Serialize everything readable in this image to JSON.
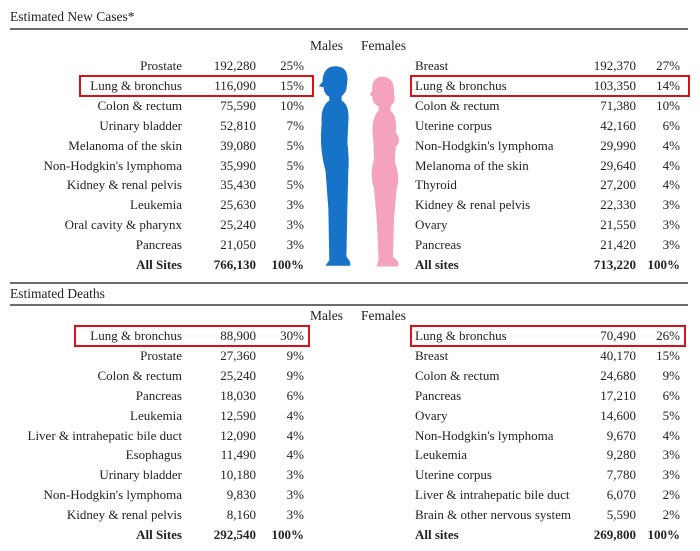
{
  "colors": {
    "male": "#1673c7",
    "female": "#f5a3bd",
    "highlight": "#d8101a"
  },
  "new_cases": {
    "title": "Estimated New Cases*",
    "males_header": "Males",
    "females_header": "Females",
    "males": [
      {
        "site": "Prostate",
        "count": "192,280",
        "pct": "25%"
      },
      {
        "site": "Lung & bronchus",
        "count": "116,090",
        "pct": "15%",
        "highlighted": true
      },
      {
        "site": "Colon & rectum",
        "count": "75,590",
        "pct": "10%"
      },
      {
        "site": "Urinary bladder",
        "count": "52,810",
        "pct": "7%"
      },
      {
        "site": "Melanoma of the skin",
        "count": "39,080",
        "pct": "5%"
      },
      {
        "site": "Non-Hodgkin's lymphoma",
        "count": "35,990",
        "pct": "5%"
      },
      {
        "site": "Kidney & renal pelvis",
        "count": "35,430",
        "pct": "5%"
      },
      {
        "site": "Leukemia",
        "count": "25,630",
        "pct": "3%"
      },
      {
        "site": "Oral cavity & pharynx",
        "count": "25,240",
        "pct": "3%"
      },
      {
        "site": "Pancreas",
        "count": "21,050",
        "pct": "3%"
      },
      {
        "site": "All Sites",
        "count": "766,130",
        "pct": "100%",
        "total": true
      }
    ],
    "females": [
      {
        "site": "Breast",
        "count": "192,370",
        "pct": "27%"
      },
      {
        "site": "Lung & bronchus",
        "count": "103,350",
        "pct": "14%",
        "highlighted": true
      },
      {
        "site": "Colon & rectum",
        "count": "71,380",
        "pct": "10%"
      },
      {
        "site": "Uterine corpus",
        "count": "42,160",
        "pct": "6%"
      },
      {
        "site": "Non-Hodgkin's lymphoma",
        "count": "29,990",
        "pct": "4%"
      },
      {
        "site": "Melanoma of the skin",
        "count": "29,640",
        "pct": "4%"
      },
      {
        "site": "Thyroid",
        "count": "27,200",
        "pct": "4%"
      },
      {
        "site": "Kidney & renal pelvis",
        "count": "22,330",
        "pct": "3%"
      },
      {
        "site": "Ovary",
        "count": "21,550",
        "pct": "3%"
      },
      {
        "site": "Pancreas",
        "count": "21,420",
        "pct": "3%"
      },
      {
        "site": "All sites",
        "count": "713,220",
        "pct": "100%",
        "total": true
      }
    ]
  },
  "deaths": {
    "title": "Estimated Deaths",
    "males_header": "Males",
    "females_header": "Females",
    "males": [
      {
        "site": "Lung & bronchus",
        "count": "88,900",
        "pct": "30%",
        "highlighted": true
      },
      {
        "site": "Prostate",
        "count": "27,360",
        "pct": "9%"
      },
      {
        "site": "Colon & rectum",
        "count": "25,240",
        "pct": "9%"
      },
      {
        "site": "Pancreas",
        "count": "18,030",
        "pct": "6%"
      },
      {
        "site": "Leukemia",
        "count": "12,590",
        "pct": "4%"
      },
      {
        "site": "Liver & intrahepatic bile duct",
        "count": "12,090",
        "pct": "4%"
      },
      {
        "site": "Esophagus",
        "count": "11,490",
        "pct": "4%"
      },
      {
        "site": "Urinary bladder",
        "count": "10,180",
        "pct": "3%"
      },
      {
        "site": "Non-Hodgkin's lymphoma",
        "count": "9,830",
        "pct": "3%"
      },
      {
        "site": "Kidney & renal pelvis",
        "count": "8,160",
        "pct": "3%"
      },
      {
        "site": "All Sites",
        "count": "292,540",
        "pct": "100%",
        "total": true
      }
    ],
    "females": [
      {
        "site": "Lung & bronchus",
        "count": "70,490",
        "pct": "26%",
        "highlighted": true
      },
      {
        "site": "Breast",
        "count": "40,170",
        "pct": "15%"
      },
      {
        "site": "Colon & rectum",
        "count": "24,680",
        "pct": "9%"
      },
      {
        "site": "Pancreas",
        "count": "17,210",
        "pct": "6%"
      },
      {
        "site": "Ovary",
        "count": "14,600",
        "pct": "5%"
      },
      {
        "site": "Non-Hodgkin's lymphoma",
        "count": "9,670",
        "pct": "4%"
      },
      {
        "site": "Leukemia",
        "count": "9,280",
        "pct": "3%"
      },
      {
        "site": "Uterine corpus",
        "count": "7,780",
        "pct": "3%"
      },
      {
        "site": "Liver & intrahepatic bile duct",
        "count": "6,070",
        "pct": "2%"
      },
      {
        "site": "Brain & other nervous system",
        "count": "5,590",
        "pct": "2%"
      },
      {
        "site": "All sites",
        "count": "269,800",
        "pct": "100%",
        "total": true
      }
    ]
  }
}
